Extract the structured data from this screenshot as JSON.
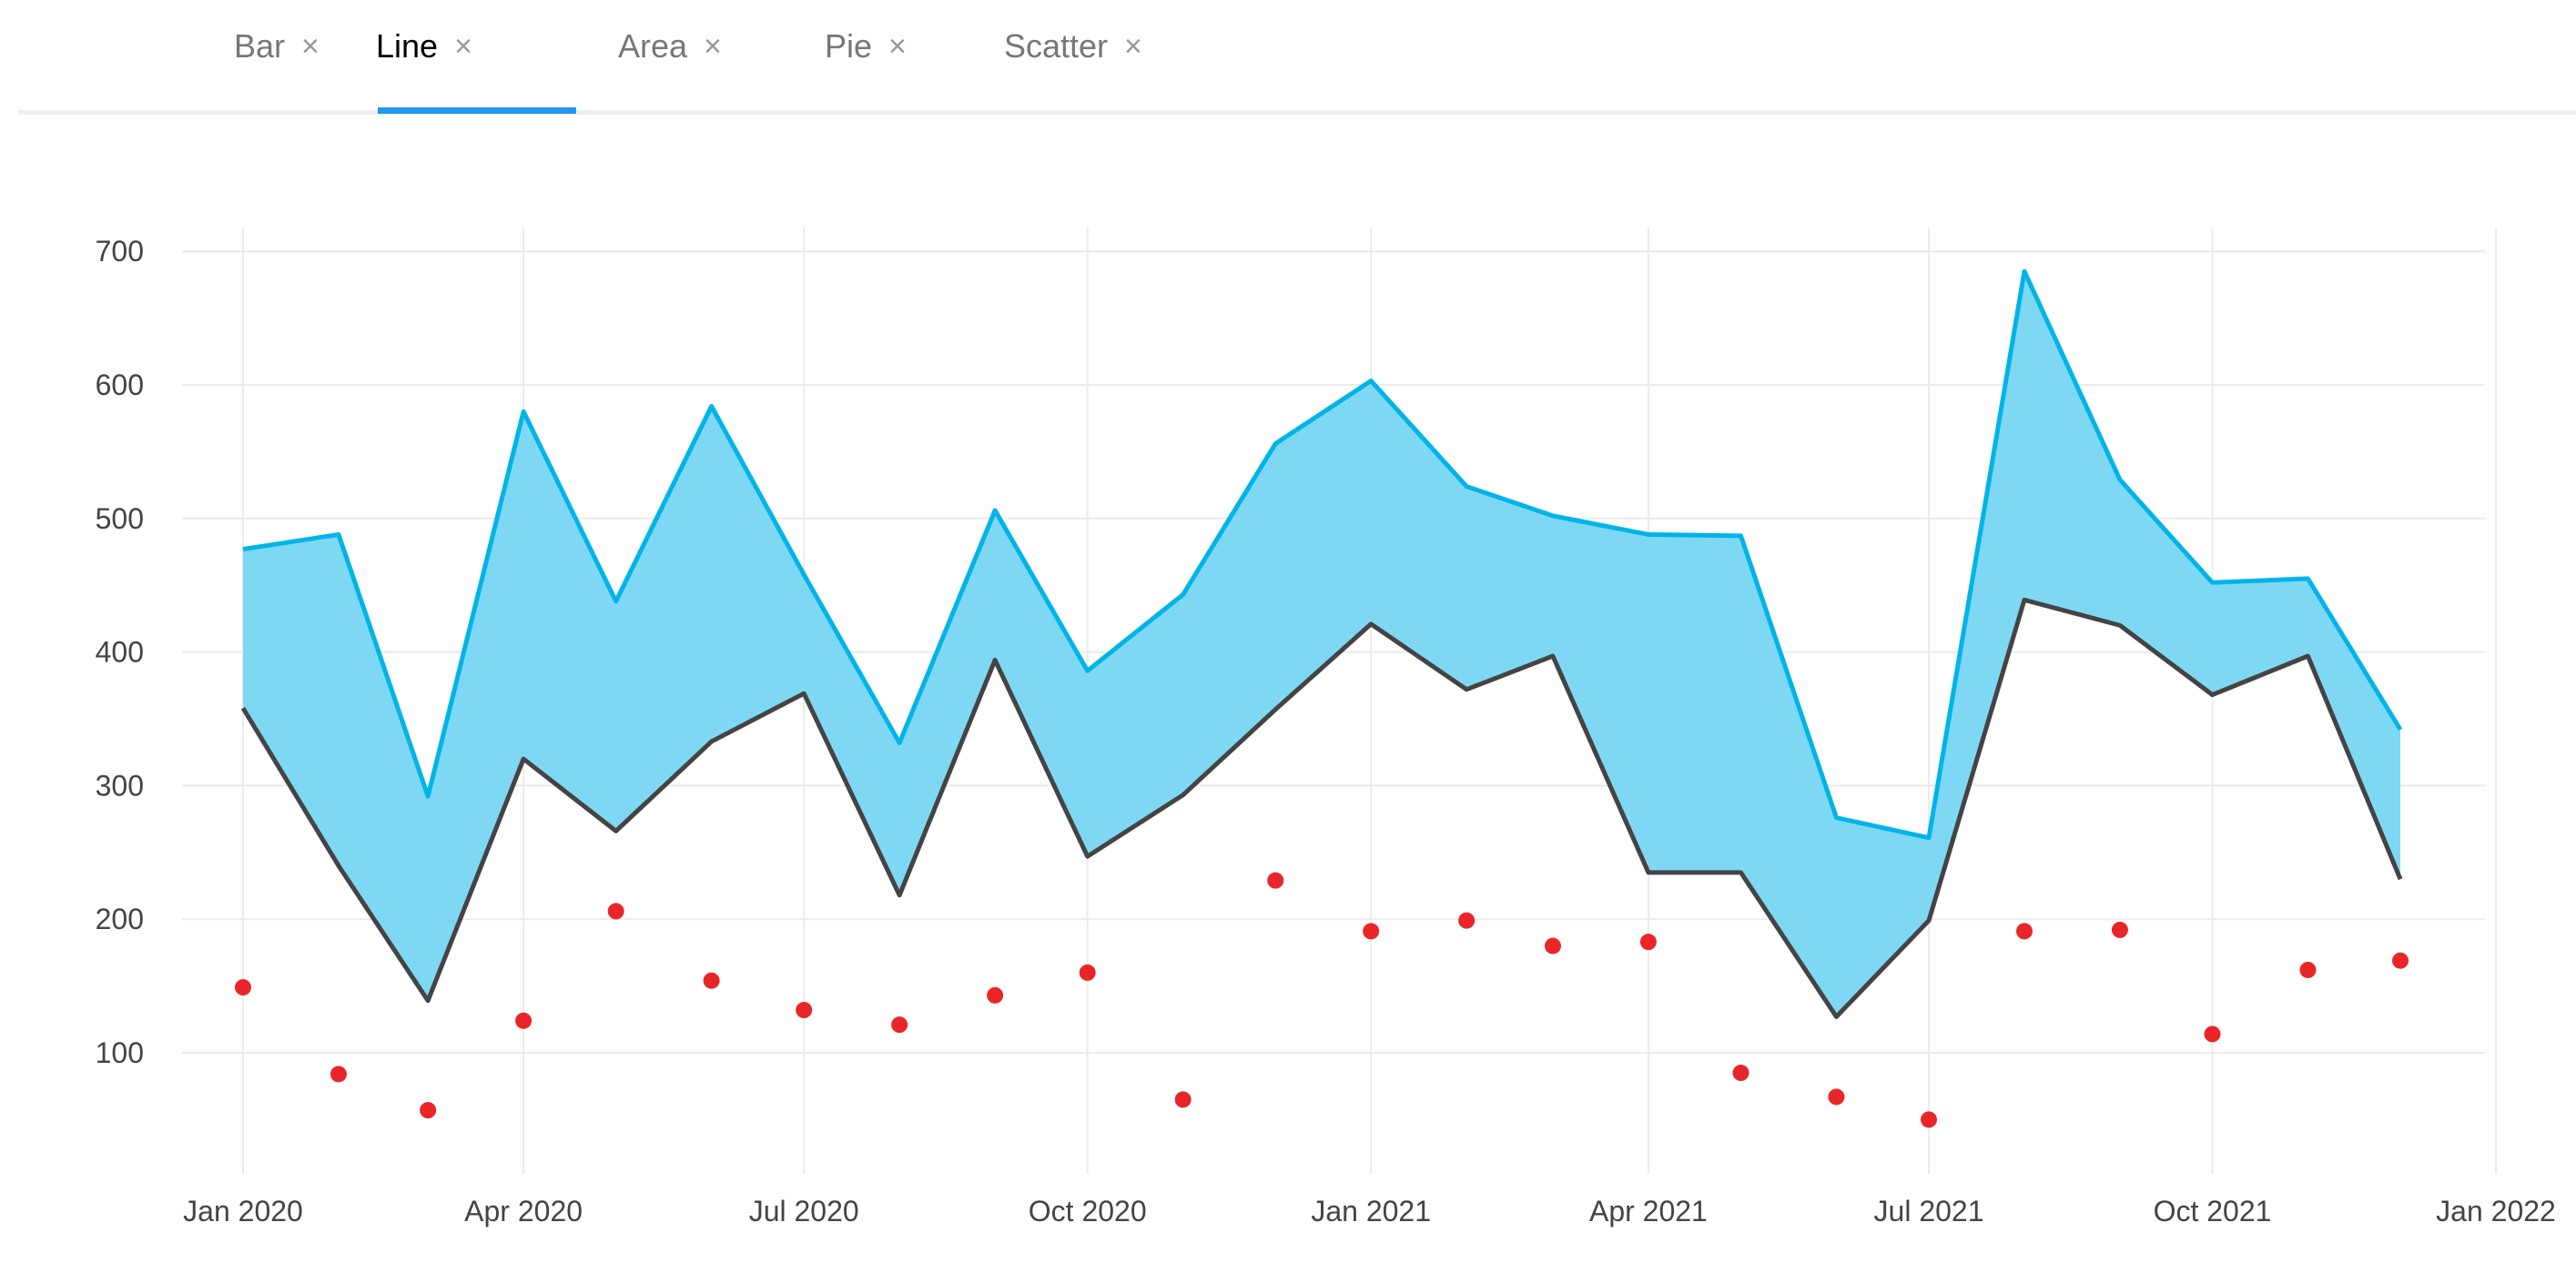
{
  "tabs": [
    {
      "label": "Bar",
      "close": "×"
    },
    {
      "label": "Line",
      "close": "×"
    },
    {
      "label": "Area",
      "close": "×"
    },
    {
      "label": "Pie",
      "close": "×"
    },
    {
      "label": "Scatter",
      "close": "×"
    }
  ],
  "active_tab": "Line",
  "chart_data": {
    "type": "line",
    "x": [
      "2020-01",
      "2020-02",
      "2020-03",
      "2020-04",
      "2020-05",
      "2020-06",
      "2020-07",
      "2020-08",
      "2020-09",
      "2020-10",
      "2020-11",
      "2020-12",
      "2021-01",
      "2021-02",
      "2021-03",
      "2021-04",
      "2021-05",
      "2021-06",
      "2021-07",
      "2021-08",
      "2021-09",
      "2021-10",
      "2021-11",
      "2021-12"
    ],
    "series": [
      {
        "type": "line-upper",
        "values": [
          477,
          488,
          292,
          580,
          438,
          584,
          458,
          332,
          506,
          386,
          443,
          556,
          603,
          524,
          502,
          488,
          487,
          276,
          261,
          685,
          529,
          452,
          455,
          342
        ]
      },
      {
        "type": "line-lower",
        "values": [
          358,
          240,
          139,
          320,
          266,
          333,
          369,
          218,
          394,
          247,
          293,
          357,
          421,
          372,
          397,
          235,
          235,
          127,
          199,
          439,
          420,
          368,
          397,
          230
        ]
      },
      {
        "type": "scatter",
        "values": [
          149,
          84,
          57,
          124,
          206,
          154,
          132,
          121,
          143,
          160,
          65,
          229,
          191,
          199,
          180,
          183,
          85,
          67,
          50,
          191,
          192,
          114,
          162,
          169
        ]
      }
    ],
    "fill_between": "upper-lower",
    "ylim": [
      10,
      720
    ],
    "yticks": [
      "100",
      "200",
      "300",
      "400",
      "500",
      "600",
      "700"
    ],
    "xticks": [
      "Jan 2020",
      "Apr 2020",
      "Jul 2020",
      "Oct 2020",
      "Jan 2021",
      "Apr 2021",
      "Jul 2021",
      "Oct 2021",
      "Jan 2022"
    ],
    "xlim": [
      "2019-12-01",
      "2022-01-10"
    ],
    "grid": true,
    "colors": {
      "upper": "#00b4e8",
      "lower": "#444444",
      "fill": "#7fd8f3",
      "scatter": "#e8262a",
      "grid": "#ebebeb"
    }
  }
}
